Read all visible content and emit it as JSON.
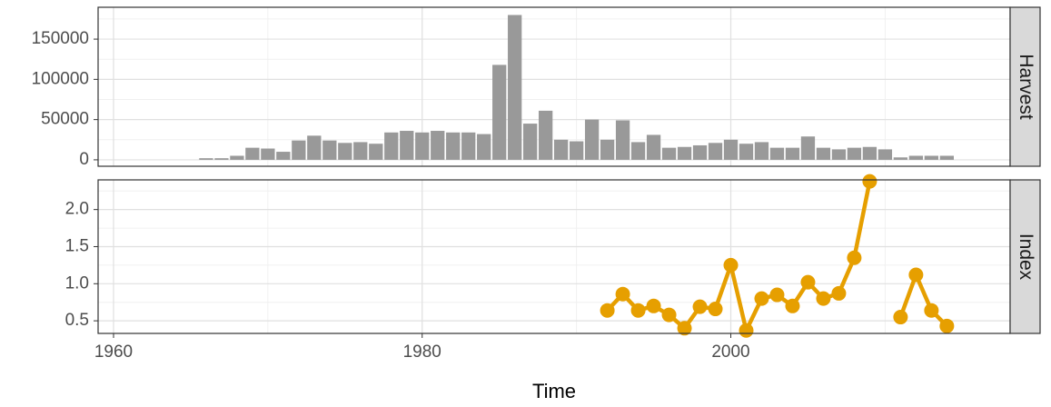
{
  "chart_data": [
    {
      "type": "bar",
      "strip": "Harvest",
      "color": "#999999",
      "x": [
        1966,
        1967,
        1968,
        1969,
        1970,
        1971,
        1972,
        1973,
        1974,
        1975,
        1976,
        1977,
        1978,
        1979,
        1980,
        1981,
        1982,
        1983,
        1984,
        1985,
        1986,
        1987,
        1988,
        1989,
        1990,
        1991,
        1992,
        1993,
        1994,
        1995,
        1996,
        1997,
        1998,
        1999,
        2000,
        2001,
        2002,
        2003,
        2004,
        2005,
        2006,
        2007,
        2008,
        2009,
        2010,
        2011,
        2012,
        2013,
        2014
      ],
      "values": [
        2000,
        2000,
        5000,
        15000,
        14000,
        10000,
        24000,
        30000,
        24000,
        21000,
        22000,
        20000,
        34000,
        36000,
        34000,
        36000,
        34000,
        34000,
        32000,
        118000,
        180000,
        45000,
        61000,
        25000,
        23000,
        50000,
        25000,
        49000,
        22000,
        31000,
        15000,
        16000,
        18000,
        21000,
        25000,
        20000,
        22000,
        15000,
        15000,
        29000,
        15000,
        13000,
        15000,
        16000,
        13000,
        3000,
        5000,
        5000,
        5000
      ],
      "xlim": [
        1959,
        2018.1
      ],
      "xticks": [
        1960,
        1980,
        2000
      ],
      "ylim": [
        -8000,
        189600
      ],
      "yticks": [
        0,
        50000,
        100000,
        150000
      ],
      "grid": true
    },
    {
      "type": "line",
      "strip": "Index",
      "color": "#E69F00",
      "x_label": "Time",
      "x": [
        1992,
        1993,
        1994,
        1995,
        1996,
        1997,
        1998,
        1999,
        2000,
        2001,
        2002,
        2003,
        2004,
        2005,
        2006,
        2007,
        2008,
        2009,
        2010,
        2011,
        2012,
        2013,
        2014
      ],
      "values": [
        0.64,
        0.86,
        0.64,
        0.7,
        0.58,
        0.4,
        0.69,
        0.66,
        1.25,
        0.37,
        0.8,
        0.85,
        0.7,
        1.02,
        0.8,
        0.87,
        1.35,
        2.38,
        null,
        0.55,
        1.12,
        0.64,
        0.43
      ],
      "xlim": [
        1959,
        2018.1
      ],
      "xticks": [
        1960,
        1980,
        2000
      ],
      "ylim": [
        0.33,
        2.4
      ],
      "yticks": [
        {
          "value": 0.5,
          "label": "0.5"
        },
        {
          "value": 1.0,
          "label": "1.0"
        },
        {
          "value": 1.5,
          "label": "1.5"
        },
        {
          "value": 2.0,
          "label": "2.0"
        }
      ],
      "grid": true
    }
  ]
}
